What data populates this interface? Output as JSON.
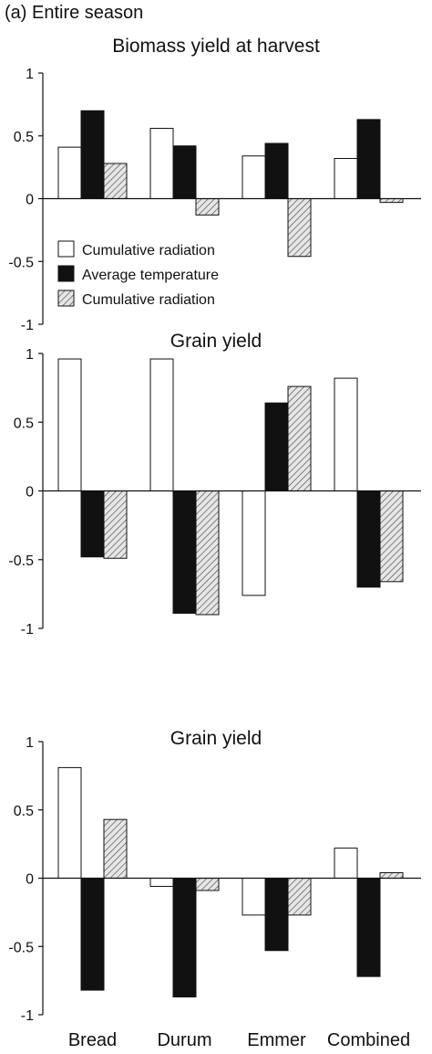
{
  "figure": {
    "heading": "(a) Entire season",
    "categories": [
      "Bread",
      "Durum",
      "Emmer",
      "Combined"
    ],
    "legend": {
      "placement": "lower-left of top panel",
      "entries": [
        {
          "name": "Cumulative radiation",
          "fill": "#ffffff"
        },
        {
          "name": "Average temperature",
          "fill": "#111111"
        },
        {
          "name": "Cumulative radiation",
          "fill": "hatched"
        }
      ]
    }
  },
  "chart_data": [
    {
      "type": "bar",
      "title": "Biomass yield at harvest",
      "categories": [
        "Bread",
        "Durum",
        "Emmer",
        "Combined"
      ],
      "ylim": [
        -1,
        1
      ],
      "yticks": [
        "1",
        "0.5",
        "0",
        "-0.5",
        "-1"
      ],
      "series": [
        {
          "name": "Cumulative radiation",
          "values": [
            0.41,
            0.56,
            0.34,
            0.32
          ]
        },
        {
          "name": "Average temperature",
          "values": [
            0.7,
            0.42,
            0.44,
            0.63
          ]
        },
        {
          "name": "Cumulative radiation",
          "values": [
            0.28,
            -0.13,
            -0.46,
            -0.03
          ]
        }
      ]
    },
    {
      "type": "bar",
      "title": "Grain yield",
      "categories": [
        "Bread",
        "Durum",
        "Emmer",
        "Combined"
      ],
      "ylim": [
        -1,
        1
      ],
      "yticks": [
        "1",
        "0.5",
        "0",
        "-0.5",
        "-1"
      ],
      "series": [
        {
          "name": "Cumulative radiation",
          "values": [
            0.96,
            0.96,
            -0.76,
            0.82
          ]
        },
        {
          "name": "Average temperature",
          "values": [
            -0.48,
            -0.89,
            0.64,
            -0.7
          ]
        },
        {
          "name": "Cumulative radiation",
          "values": [
            -0.49,
            -0.9,
            0.76,
            -0.66
          ]
        }
      ]
    },
    {
      "type": "bar",
      "title": "Grain yield",
      "categories": [
        "Bread",
        "Durum",
        "Emmer",
        "Combined"
      ],
      "ylim": [
        -1,
        1
      ],
      "yticks": [
        "1",
        "0.5",
        "0",
        "-0.5",
        "-1"
      ],
      "series": [
        {
          "name": "Cumulative radiation",
          "values": [
            0.81,
            -0.06,
            -0.27,
            0.22
          ]
        },
        {
          "name": "Average temperature",
          "values": [
            -0.82,
            -0.87,
            -0.53,
            -0.72
          ]
        },
        {
          "name": "Cumulative radiation",
          "values": [
            0.43,
            -0.09,
            -0.27,
            0.04
          ]
        }
      ]
    }
  ]
}
